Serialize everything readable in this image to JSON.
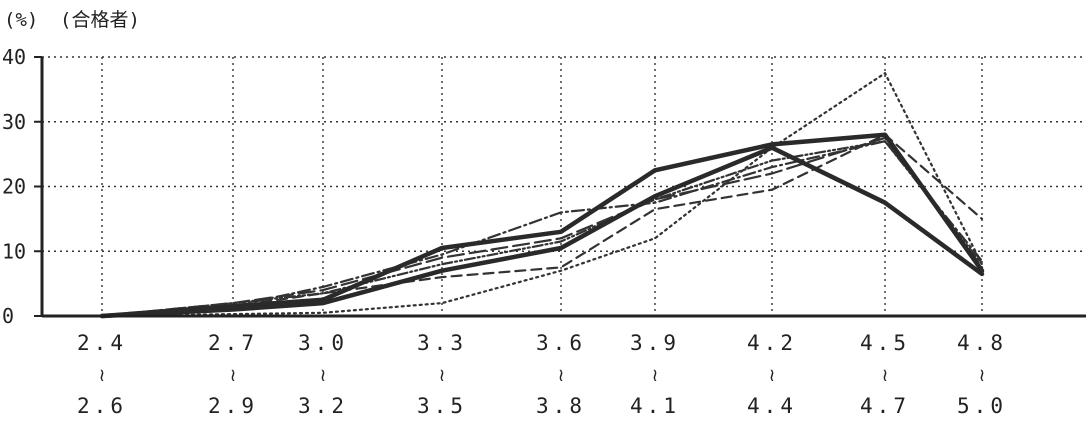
{
  "chart_data": {
    "type": "line",
    "unit_label": "(%)",
    "ylabel": "(合格者)",
    "ylim": [
      0,
      40
    ],
    "y_ticks": [
      "0",
      "10",
      "20",
      "30",
      "40"
    ],
    "grid": true,
    "categories": [
      {
        "from": "2.4",
        "sep": "≀",
        "to": "2.6"
      },
      {
        "from": "2.7",
        "sep": "≀",
        "to": "2.9"
      },
      {
        "from": "3.0",
        "sep": "≀",
        "to": "3.2"
      },
      {
        "from": "3.3",
        "sep": "≀",
        "to": "3.5"
      },
      {
        "from": "3.6",
        "sep": "≀",
        "to": "3.8"
      },
      {
        "from": "3.9",
        "sep": "≀",
        "to": "4.1"
      },
      {
        "from": "4.2",
        "sep": "≀",
        "to": "4.4"
      },
      {
        "from": "4.5",
        "sep": "≀",
        "to": "4.7"
      },
      {
        "from": "4.8",
        "sep": "≀",
        "to": "5.0"
      }
    ],
    "series": [
      {
        "style": "thick-solid",
        "color": "#2a2a2a",
        "values": [
          0,
          1.5,
          2.5,
          10.5,
          13,
          22.5,
          26.5,
          28,
          7
        ]
      },
      {
        "style": "thick-solid",
        "color": "#2a2a2a",
        "values": [
          0,
          1,
          2,
          7,
          10.5,
          18.5,
          26,
          17.5,
          6.5
        ]
      },
      {
        "style": "dotted",
        "color": "#333333",
        "values": [
          0,
          0.3,
          0.5,
          2,
          7,
          12,
          26,
          37.5,
          8
        ]
      },
      {
        "style": "dashed",
        "color": "#333333",
        "values": [
          0,
          1.5,
          3.5,
          6,
          7.5,
          16.5,
          19.5,
          28,
          15
        ]
      },
      {
        "style": "dash-dot",
        "color": "#333333",
        "values": [
          0,
          1.5,
          4.5,
          9.5,
          16,
          17.5,
          23,
          27,
          8.5
        ]
      },
      {
        "style": "long-dash",
        "color": "#333333",
        "values": [
          0,
          2,
          4,
          9,
          12,
          18,
          22,
          27.5,
          7.5
        ]
      },
      {
        "style": "dash-dot-dot",
        "color": "#333333",
        "values": [
          0,
          2,
          3.5,
          8,
          11.5,
          18,
          24,
          27,
          8
        ]
      }
    ]
  }
}
